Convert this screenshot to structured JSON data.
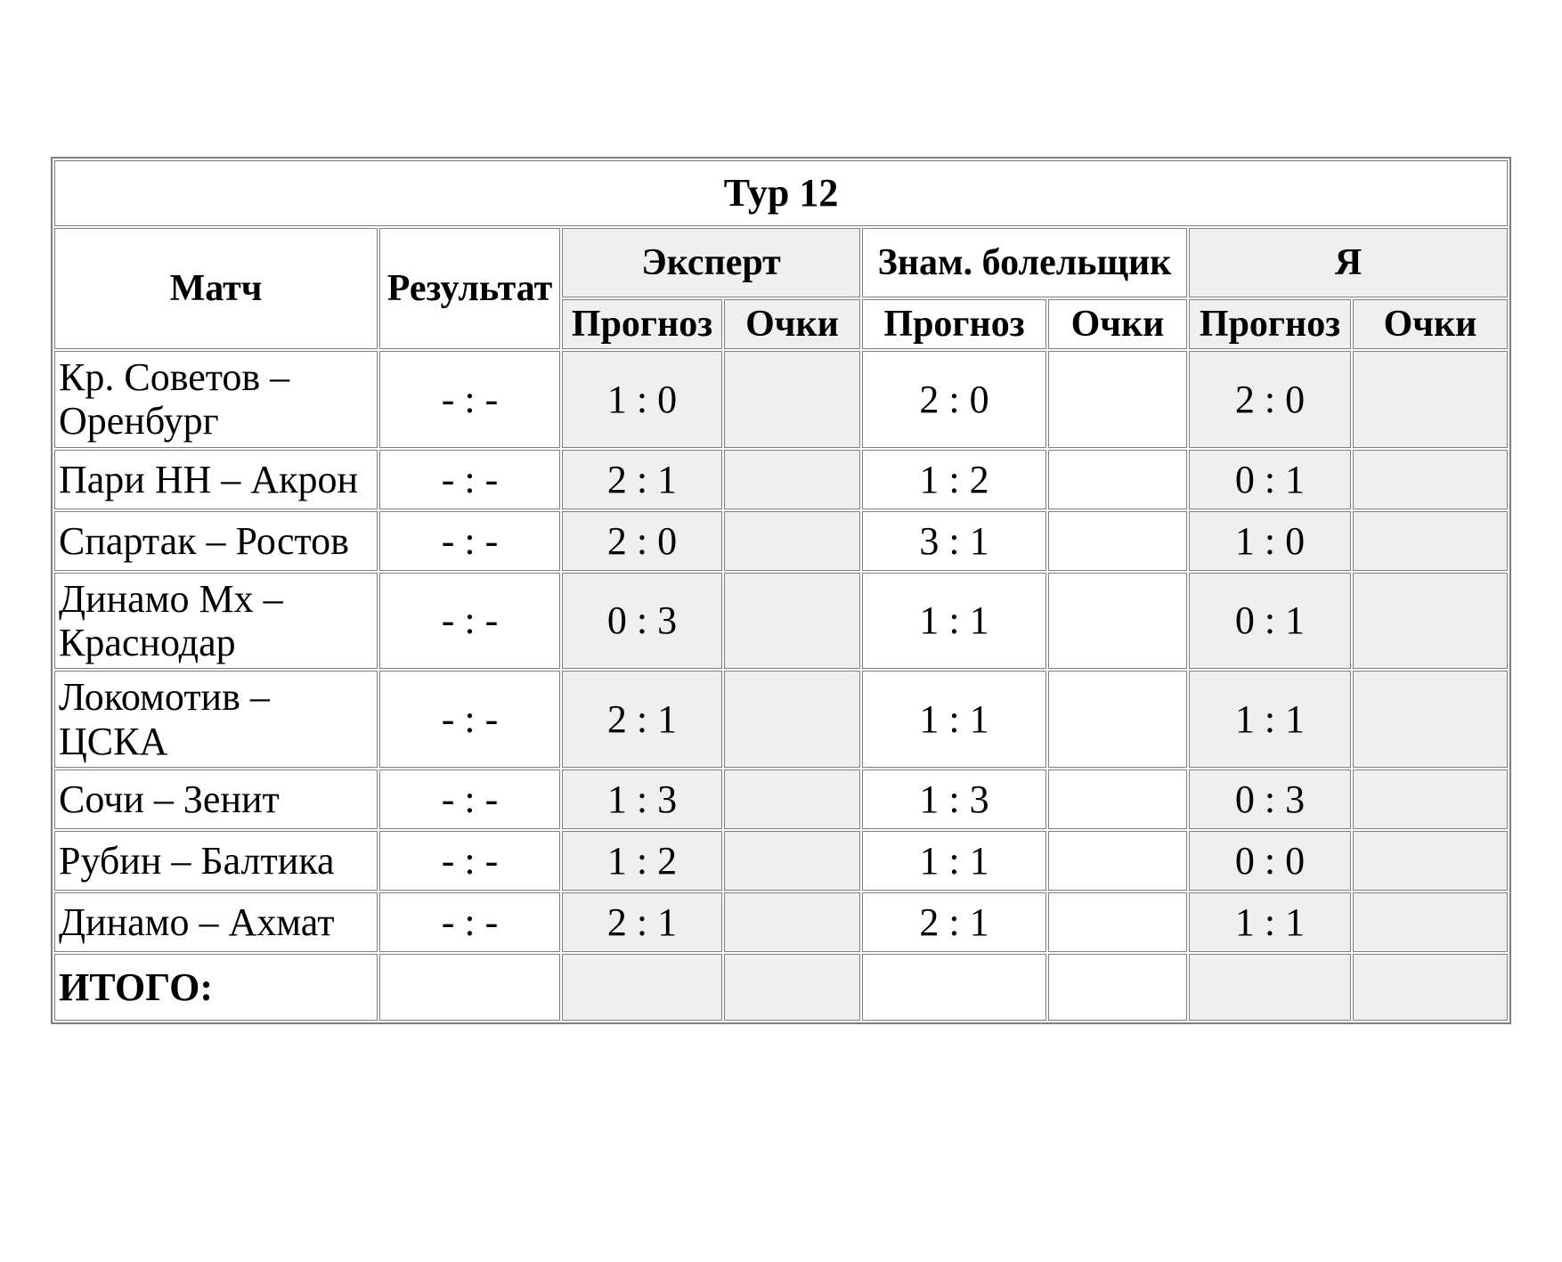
{
  "table": {
    "title": "Тур 12",
    "header": {
      "match": "Матч",
      "result": "Результат",
      "groups": [
        {
          "id": "expert",
          "label": "Эксперт",
          "shaded": true
        },
        {
          "id": "fan",
          "label": "Знам. болельщик",
          "shaded": false
        },
        {
          "id": "me",
          "label": "Я",
          "shaded": true
        }
      ],
      "sub": {
        "forecast": "Прогноз",
        "points": "Очки"
      }
    },
    "rows": [
      {
        "match": "Кр. Советов – Оренбург",
        "result": "- : -",
        "expert_forecast": "1 : 0",
        "expert_points": "",
        "fan_forecast": "2 : 0",
        "fan_points": "",
        "me_forecast": "2 : 0",
        "me_points": ""
      },
      {
        "match": "Пари НН – Акрон",
        "result": "- : -",
        "expert_forecast": "2 : 1",
        "expert_points": "",
        "fan_forecast": "1 : 2",
        "fan_points": "",
        "me_forecast": "0 : 1",
        "me_points": ""
      },
      {
        "match": "Спартак – Ростов",
        "result": "- : -",
        "expert_forecast": "2 : 0",
        "expert_points": "",
        "fan_forecast": "3 : 1",
        "fan_points": "",
        "me_forecast": "1 : 0",
        "me_points": ""
      },
      {
        "match": "Динамо Мх – Краснодар",
        "result": "- : -",
        "expert_forecast": "0 : 3",
        "expert_points": "",
        "fan_forecast": "1 : 1",
        "fan_points": "",
        "me_forecast": "0 : 1",
        "me_points": ""
      },
      {
        "match": "Локомотив – ЦСКА",
        "result": "- : -",
        "expert_forecast": "2 : 1",
        "expert_points": "",
        "fan_forecast": "1 : 1",
        "fan_points": "",
        "me_forecast": "1 : 1",
        "me_points": ""
      },
      {
        "match": "Сочи – Зенит",
        "result": "- : -",
        "expert_forecast": "1 : 3",
        "expert_points": "",
        "fan_forecast": "1 : 3",
        "fan_points": "",
        "me_forecast": "0 : 3",
        "me_points": ""
      },
      {
        "match": "Рубин – Балтика",
        "result": "- : -",
        "expert_forecast": "1 : 2",
        "expert_points": "",
        "fan_forecast": "1 : 1",
        "fan_points": "",
        "me_forecast": "0 : 0",
        "me_points": ""
      },
      {
        "match": "Динамо – Ахмат",
        "result": "- : -",
        "expert_forecast": "2 : 1",
        "expert_points": "",
        "fan_forecast": "2 : 1",
        "fan_points": "",
        "me_forecast": "1 : 1",
        "me_points": ""
      }
    ],
    "total": {
      "label": "ИТОГО:",
      "result": "",
      "expert_forecast": "",
      "expert_points": "",
      "fan_forecast": "",
      "fan_points": "",
      "me_forecast": "",
      "me_points": ""
    },
    "colors": {
      "shaded_cell_bg": "#efefef",
      "border": "#7f7f7f",
      "text": "#000000",
      "page_bg": "#ffffff"
    }
  }
}
